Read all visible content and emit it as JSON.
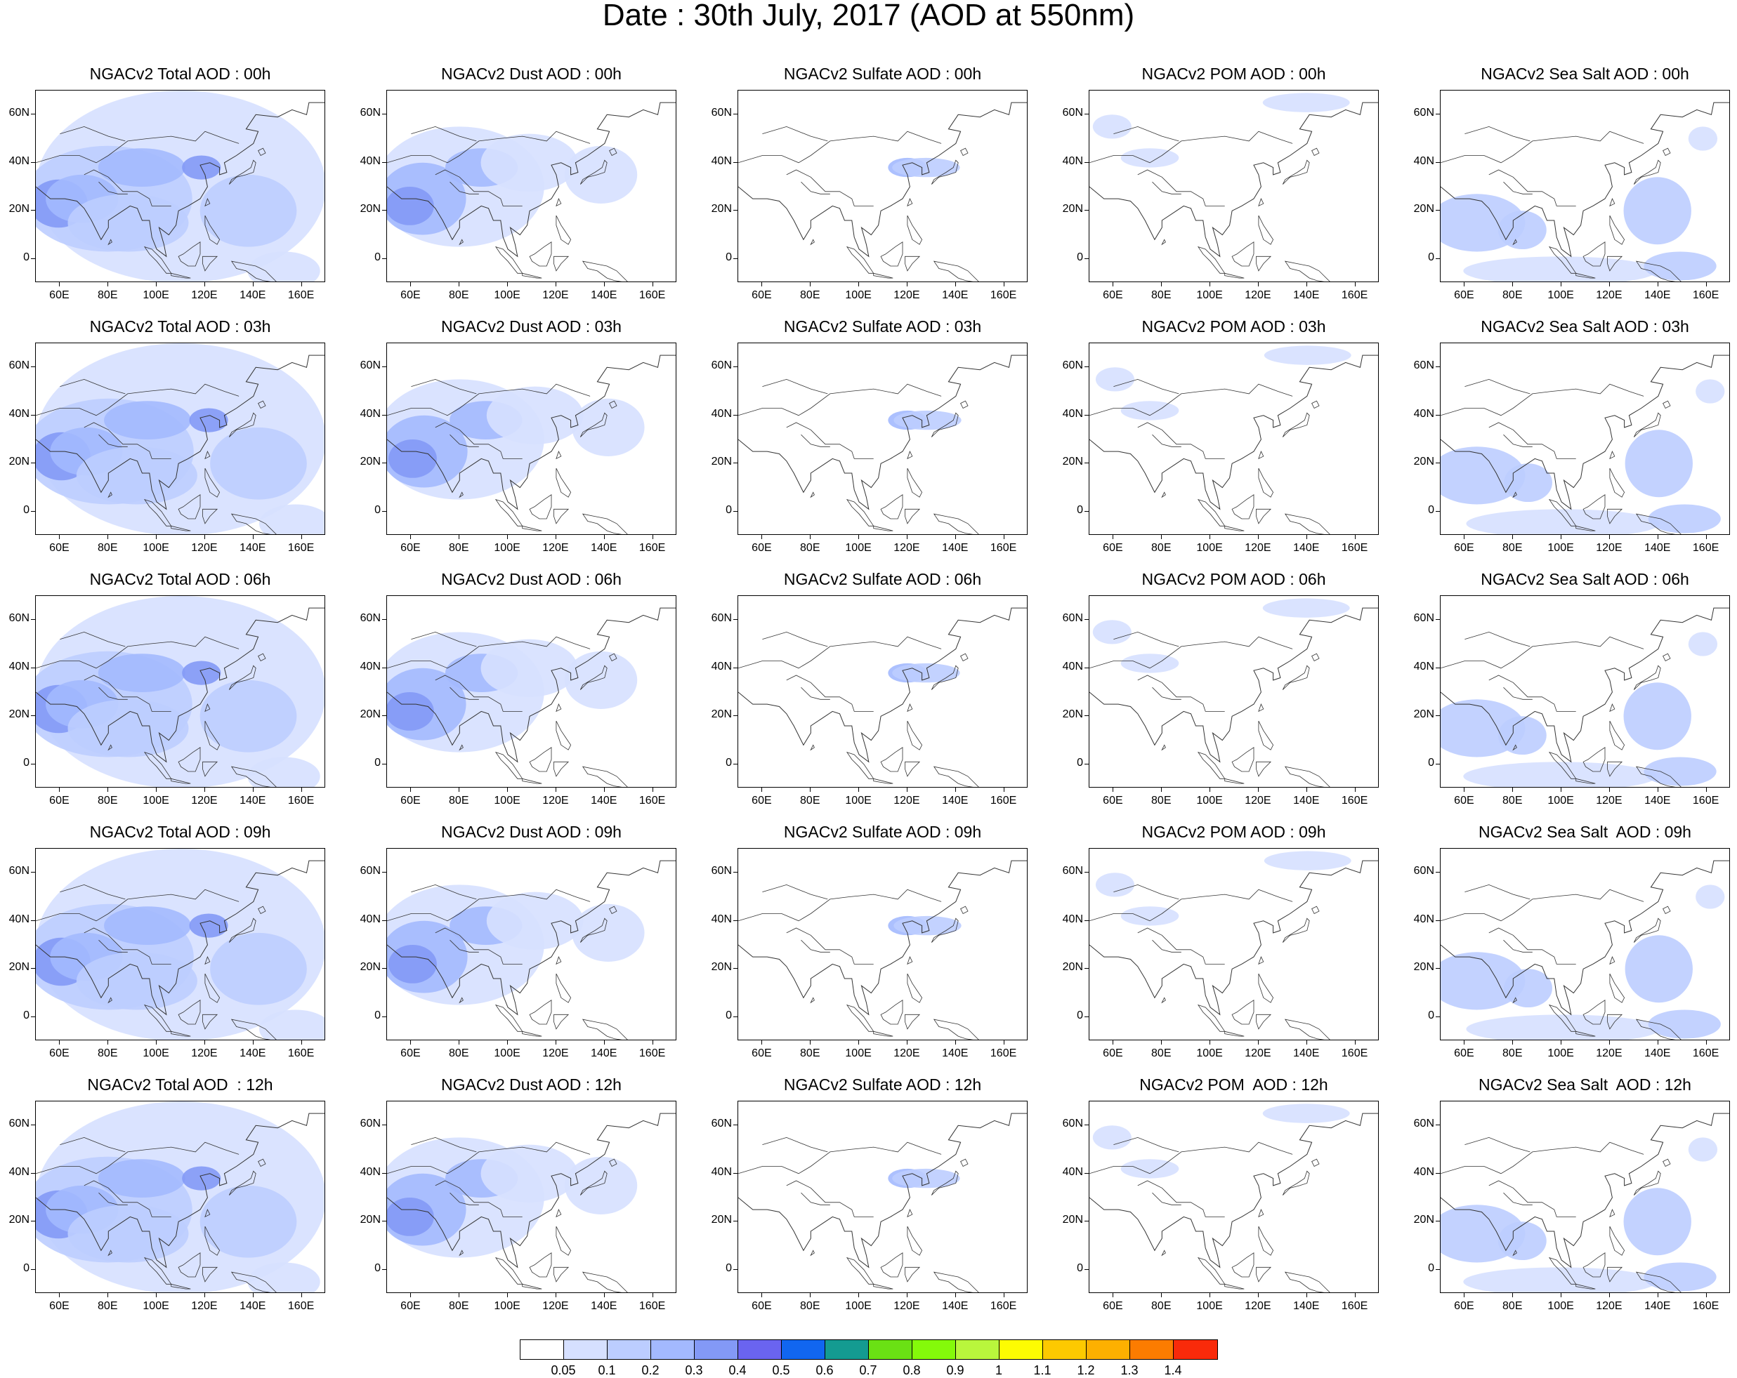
{
  "title": "Date : 30th July, 2017 (AOD at 550nm)",
  "panels": [
    [
      "NGACv2 Total AOD : 00h",
      "NGACv2 Dust AOD : 00h",
      "NGACv2 Sulfate AOD : 00h",
      "NGACv2 POM AOD : 00h",
      "NGACv2 Sea Salt AOD : 00h"
    ],
    [
      "NGACv2 Total AOD : 03h",
      "NGACv2 Dust AOD : 03h",
      "NGACv2 Sulfate AOD : 03h",
      "NGACv2 POM AOD : 03h",
      "NGACv2 Sea Salt AOD : 03h"
    ],
    [
      "NGACv2 Total AOD : 06h",
      "NGACv2 Dust AOD : 06h",
      "NGACv2 Sulfate AOD : 06h",
      "NGACv2 POM AOD : 06h",
      "NGACv2 Sea Salt AOD : 06h"
    ],
    [
      "NGACv2 Total AOD : 09h",
      "NGACv2 Dust AOD : 09h",
      "NGACv2 Sulfate AOD : 09h",
      "NGACv2 POM AOD : 09h",
      "NGACv2 Sea Salt  AOD : 09h"
    ],
    [
      "NGACv2 Total AOD  : 12h",
      "NGACv2 Dust AOD : 12h",
      "NGACv2 Sulfate AOD : 12h",
      "NGACv2 POM  AOD : 12h",
      "NGACv2 Sea Salt  AOD : 12h"
    ]
  ],
  "axes": {
    "lat_ticks": [
      "60N",
      "40N",
      "20N",
      "0"
    ],
    "lon_ticks": [
      "60E",
      "80E",
      "100E",
      "120E",
      "140E",
      "160E"
    ]
  },
  "chart_data": {
    "type": "heatmap",
    "lat_range": [
      -10,
      70
    ],
    "lon_range": [
      50,
      170
    ],
    "colorbar": {
      "labels": [
        "0.05",
        "0.1",
        "0.2",
        "0.3",
        "0.4",
        "0.5",
        "0.6",
        "0.7",
        "0.8",
        "0.9",
        "1",
        "1.1",
        "1.2",
        "1.3",
        "1.4"
      ],
      "colors": [
        "#ffffff",
        "#d6e0ff",
        "#bccdff",
        "#a3b9fe",
        "#8399f6",
        "#6a64f0",
        "#1166f0",
        "#149b91",
        "#6ae114",
        "#84fa0a",
        "#b9f63c",
        "#fdfc02",
        "#fdc900",
        "#fdb000",
        "#fc7c00",
        "#f92a0a"
      ]
    }
  }
}
